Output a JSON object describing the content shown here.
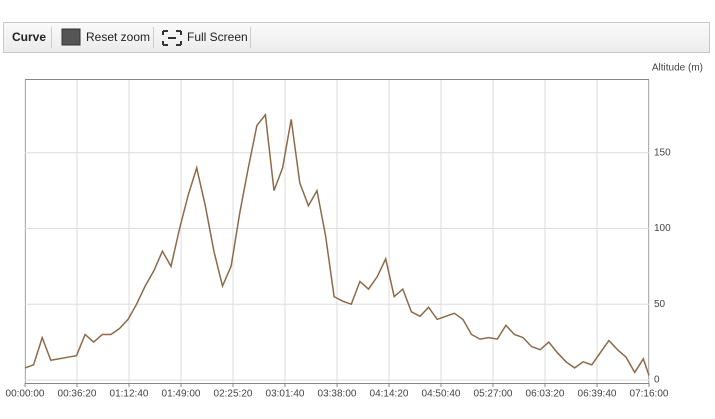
{
  "toolbar": {
    "title": "Curve",
    "buttons": [
      "Reset zoom",
      "Full Screen"
    ]
  },
  "chart_data": {
    "type": "line",
    "y_label": "Altitude (m)",
    "x": [
      0,
      360,
      720,
      1080,
      1440,
      1800,
      2160,
      2520,
      2880,
      3240,
      3600,
      3960,
      4320,
      4680,
      5040,
      5400,
      5760,
      6120,
      6480,
      6840,
      7200,
      7560,
      7920,
      8280,
      8640,
      9000,
      9360,
      9720,
      10080,
      10440,
      10800,
      11160,
      11520,
      11880,
      12240,
      12600,
      12960,
      13320,
      13680,
      14040,
      14400,
      14760,
      15120,
      15480,
      15840,
      16200,
      16560,
      16920,
      17280,
      17640,
      18000,
      18360,
      18720,
      19080,
      19440,
      19800,
      20160,
      20520,
      20880,
      21240,
      21600,
      21960,
      22320,
      22680,
      23040,
      23400,
      23760,
      24120,
      24480,
      24840,
      25200,
      25560,
      25920,
      26160
    ],
    "values": [
      8,
      10,
      28,
      13,
      14,
      15,
      16,
      30,
      25,
      30,
      30,
      34,
      40,
      50,
      62,
      72,
      85,
      75,
      100,
      122,
      140,
      115,
      85,
      62,
      75,
      110,
      140,
      168,
      175,
      125,
      140,
      172,
      130,
      115,
      125,
      95,
      55,
      52,
      50,
      65,
      60,
      68,
      80,
      55,
      60,
      45,
      42,
      48,
      40,
      42,
      44,
      40,
      30,
      27,
      28,
      27,
      36,
      30,
      28,
      22,
      20,
      25,
      18,
      12,
      8,
      12,
      10,
      18,
      26,
      20,
      15,
      5,
      14,
      3
    ],
    "color": "#8b6b4a",
    "xlim": [
      0,
      26160
    ],
    "xticks": [
      {
        "value": 0,
        "label": "00:00:00"
      },
      {
        "value": 2180,
        "label": "00:36:20"
      },
      {
        "value": 4360,
        "label": "01:12:40"
      },
      {
        "value": 6540,
        "label": "01:49:00"
      },
      {
        "value": 8720,
        "label": "02:25:20"
      },
      {
        "value": 10900,
        "label": "03:01:40"
      },
      {
        "value": 13080,
        "label": "03:38:00"
      },
      {
        "value": 15260,
        "label": "04:14:20"
      },
      {
        "value": 17440,
        "label": "04:50:40"
      },
      {
        "value": 19620,
        "label": "05:27:00"
      },
      {
        "value": 21800,
        "label": "06:03:20"
      },
      {
        "value": 23980,
        "label": "06:39:40"
      },
      {
        "value": 26160,
        "label": "07:16:00"
      }
    ],
    "ylim": [
      -2,
      198
    ],
    "yticks": [
      0,
      50,
      100,
      150
    ],
    "grid": true
  }
}
